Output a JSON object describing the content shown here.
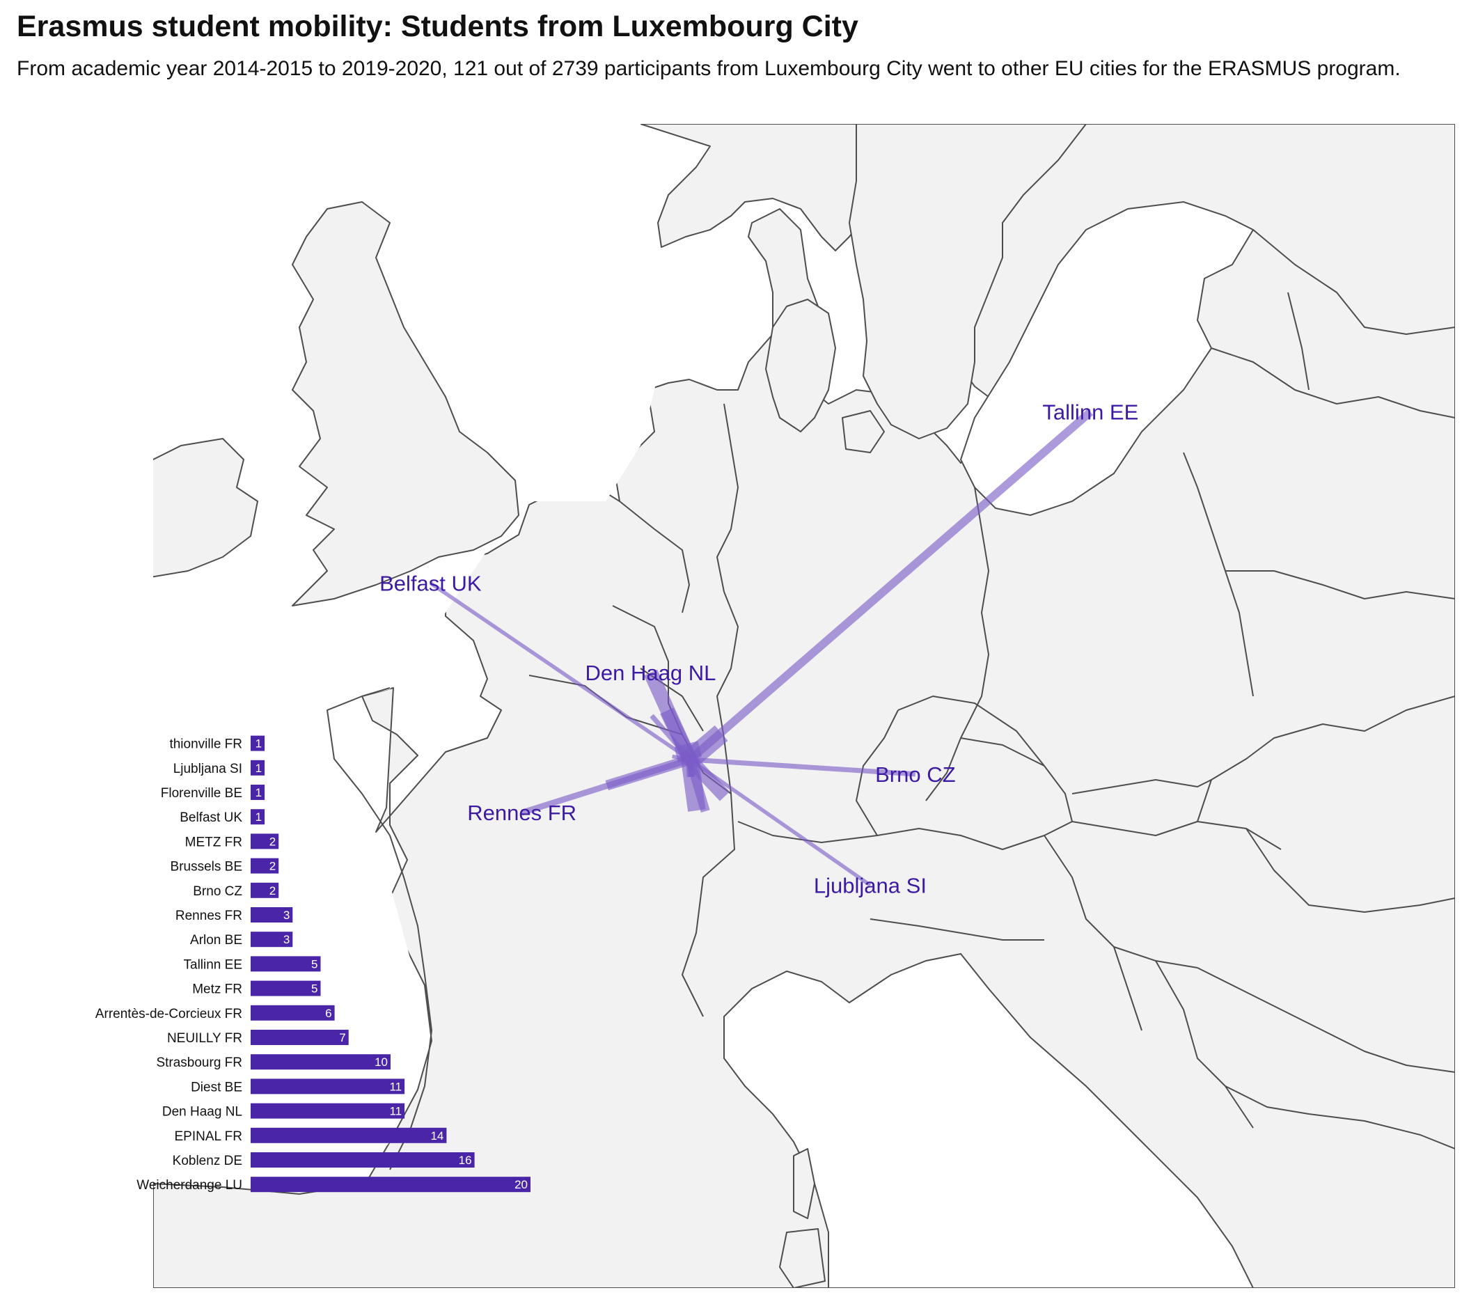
{
  "title": "Erasmus student mobility: Students from Luxembourg City",
  "subtitle": "From academic year 2014-2015 to 2019-2020, 121 out of 2739 participants from Luxembourg City went to other EU cities for the ERASMUS program.",
  "colors": {
    "flow": "#7b5cc8",
    "label": "#3c1aa3",
    "bar": "#4a25a8",
    "land": "#f2f2f2",
    "border": "#4d4d4d"
  },
  "map": {
    "origin": {
      "name": "Luxembourg City",
      "lon": 6.13,
      "lat": 49.61
    },
    "destinations": [
      {
        "name": "Tallinn EE",
        "lon": 24.75,
        "lat": 59.44,
        "students": 5,
        "labeled": true
      },
      {
        "name": "Belfast UK",
        "lon": -5.93,
        "lat": 54.6,
        "students": 1,
        "labeled": true
      },
      {
        "name": "Den Haag NL",
        "lon": 4.3,
        "lat": 52.07,
        "students": 11,
        "labeled": true
      },
      {
        "name": "Rennes FR",
        "lon": -1.68,
        "lat": 48.11,
        "students": 3,
        "labeled": true
      },
      {
        "name": "Brno CZ",
        "lon": 16.61,
        "lat": 49.2,
        "students": 2,
        "labeled": true
      },
      {
        "name": "Ljubljana SI",
        "lon": 14.51,
        "lat": 46.06,
        "students": 1,
        "labeled": true
      },
      {
        "name": "Weicherdange LU",
        "lon": 5.95,
        "lat": 50.05,
        "students": 20,
        "labeled": false
      },
      {
        "name": "Koblenz DE",
        "lon": 7.59,
        "lat": 50.36,
        "students": 16,
        "labeled": false
      },
      {
        "name": "EPINAL FR",
        "lon": 6.45,
        "lat": 48.17,
        "students": 14,
        "labeled": false
      },
      {
        "name": "Diest BE",
        "lon": 5.05,
        "lat": 50.99,
        "students": 11,
        "labeled": false
      },
      {
        "name": "Strasbourg FR",
        "lon": 7.75,
        "lat": 48.57,
        "students": 10,
        "labeled": false
      },
      {
        "name": "NEUILLY FR",
        "lon": 2.27,
        "lat": 48.88,
        "students": 7,
        "labeled": false
      },
      {
        "name": "Arrentès-de-Corcieux FR",
        "lon": 6.85,
        "lat": 48.15,
        "students": 6,
        "labeled": false
      },
      {
        "name": "Metz FR",
        "lon": 6.18,
        "lat": 49.12,
        "students": 5,
        "labeled": false
      },
      {
        "name": "Arlon BE",
        "lon": 5.82,
        "lat": 49.68,
        "students": 3,
        "labeled": false
      },
      {
        "name": "Brussels BE",
        "lon": 4.35,
        "lat": 50.85,
        "students": 2,
        "labeled": false
      },
      {
        "name": "METZ FR",
        "lon": 6.18,
        "lat": 49.12,
        "students": 2,
        "labeled": false
      },
      {
        "name": "Florenville BE",
        "lon": 5.31,
        "lat": 49.7,
        "students": 1,
        "labeled": false
      },
      {
        "name": "thionville FR",
        "lon": 6.17,
        "lat": 49.36,
        "students": 1,
        "labeled": false
      }
    ]
  },
  "chart_data": {
    "type": "bar",
    "orientation": "horizontal",
    "categories": [
      "thionville FR",
      "Ljubljana SI",
      "Florenville BE",
      "Belfast UK",
      "METZ FR",
      "Brussels BE",
      "Brno CZ",
      "Rennes FR",
      "Arlon BE",
      "Tallinn EE",
      "Metz FR",
      "Arrentès-de-Corcieux FR",
      "NEUILLY FR",
      "Strasbourg FR",
      "Diest BE",
      "Den Haag NL",
      "EPINAL FR",
      "Koblenz DE",
      "Weicherdange LU"
    ],
    "values": [
      1,
      1,
      1,
      1,
      2,
      2,
      2,
      3,
      3,
      5,
      5,
      6,
      7,
      10,
      11,
      11,
      14,
      16,
      20
    ],
    "xlim": [
      0,
      20
    ],
    "grid": false,
    "value_labels": true
  }
}
